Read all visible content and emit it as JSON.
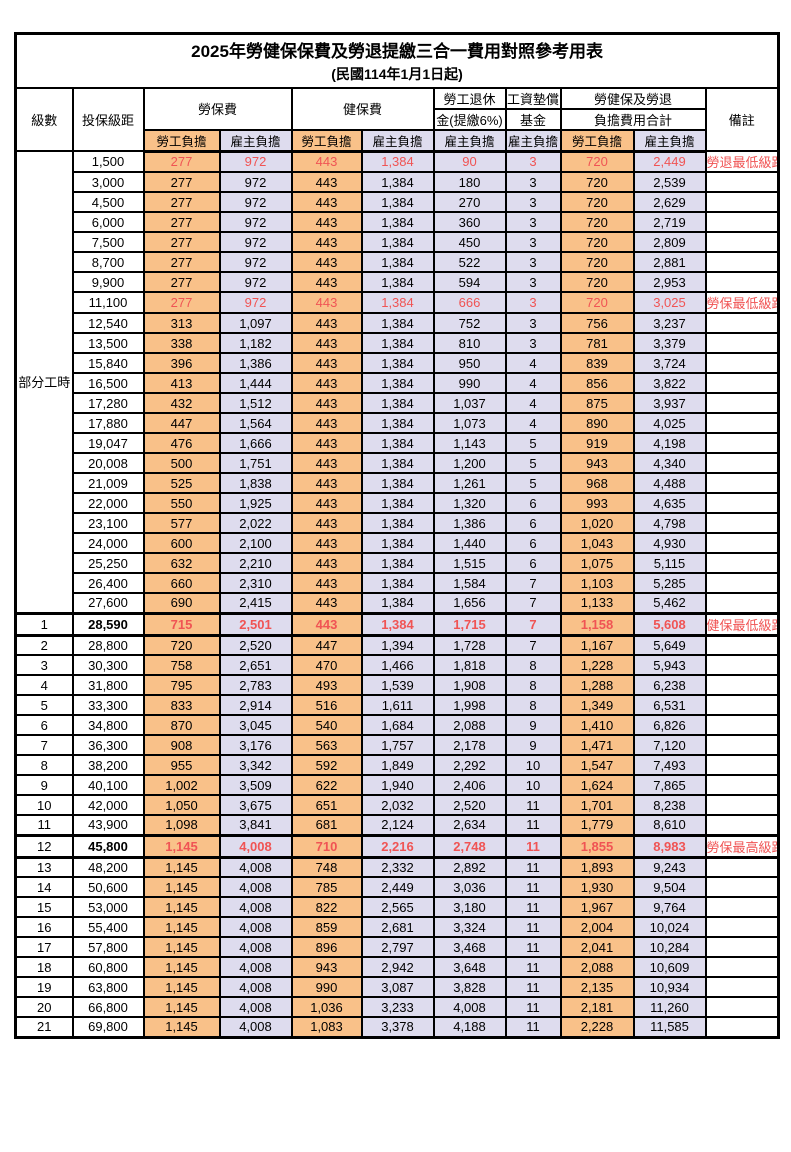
{
  "title": "2025年勞健保保費及勞退提繳三合一費用對照參考用表",
  "subtitle": "(民國114年1月1日起)",
  "colors": {
    "employee_bg": "#F9C189",
    "employer_bg": "#DEDCEE",
    "highlight_red": "#F05454"
  },
  "header": {
    "level": "級數",
    "bracket": "投保級距",
    "labor_insurance": "勞保費",
    "health_insurance": "健保費",
    "pension_line1": "勞工退休",
    "pension_line2": "金(提繳6%)",
    "wage_fund_line1": "工資墊償",
    "wage_fund_line2": "基金",
    "total_line1": "勞健保及勞退",
    "total_line2": "負擔費用合計",
    "remark": "備註",
    "employee_label": "勞工負擔",
    "employer_label": "雇主負擔"
  },
  "part_time_label": "部分工時",
  "rows": [
    {
      "level": "",
      "bracket": "1,500",
      "values": [
        "277",
        "972",
        "443",
        "1,384",
        "90",
        "3",
        "720",
        "2,449"
      ],
      "remark": "勞退最低級距",
      "red": true
    },
    {
      "level": "",
      "bracket": "3,000",
      "values": [
        "277",
        "972",
        "443",
        "1,384",
        "180",
        "3",
        "720",
        "2,539"
      ],
      "remark": ""
    },
    {
      "level": "",
      "bracket": "4,500",
      "values": [
        "277",
        "972",
        "443",
        "1,384",
        "270",
        "3",
        "720",
        "2,629"
      ],
      "remark": ""
    },
    {
      "level": "",
      "bracket": "6,000",
      "values": [
        "277",
        "972",
        "443",
        "1,384",
        "360",
        "3",
        "720",
        "2,719"
      ],
      "remark": ""
    },
    {
      "level": "",
      "bracket": "7,500",
      "values": [
        "277",
        "972",
        "443",
        "1,384",
        "450",
        "3",
        "720",
        "2,809"
      ],
      "remark": ""
    },
    {
      "level": "",
      "bracket": "8,700",
      "values": [
        "277",
        "972",
        "443",
        "1,384",
        "522",
        "3",
        "720",
        "2,881"
      ],
      "remark": ""
    },
    {
      "level": "",
      "bracket": "9,900",
      "values": [
        "277",
        "972",
        "443",
        "1,384",
        "594",
        "3",
        "720",
        "2,953"
      ],
      "remark": ""
    },
    {
      "level": "",
      "bracket": "11,100",
      "values": [
        "277",
        "972",
        "443",
        "1,384",
        "666",
        "3",
        "720",
        "3,025"
      ],
      "remark": "勞保最低級距",
      "red": true
    },
    {
      "level": "",
      "bracket": "12,540",
      "values": [
        "313",
        "1,097",
        "443",
        "1,384",
        "752",
        "3",
        "756",
        "3,237"
      ],
      "remark": ""
    },
    {
      "level": "",
      "bracket": "13,500",
      "values": [
        "338",
        "1,182",
        "443",
        "1,384",
        "810",
        "3",
        "781",
        "3,379"
      ],
      "remark": ""
    },
    {
      "level": "",
      "bracket": "15,840",
      "values": [
        "396",
        "1,386",
        "443",
        "1,384",
        "950",
        "4",
        "839",
        "3,724"
      ],
      "remark": ""
    },
    {
      "level": "",
      "bracket": "16,500",
      "values": [
        "413",
        "1,444",
        "443",
        "1,384",
        "990",
        "4",
        "856",
        "3,822"
      ],
      "remark": ""
    },
    {
      "level": "",
      "bracket": "17,280",
      "values": [
        "432",
        "1,512",
        "443",
        "1,384",
        "1,037",
        "4",
        "875",
        "3,937"
      ],
      "remark": ""
    },
    {
      "level": "",
      "bracket": "17,880",
      "values": [
        "447",
        "1,564",
        "443",
        "1,384",
        "1,073",
        "4",
        "890",
        "4,025"
      ],
      "remark": ""
    },
    {
      "level": "",
      "bracket": "19,047",
      "values": [
        "476",
        "1,666",
        "443",
        "1,384",
        "1,143",
        "5",
        "919",
        "4,198"
      ],
      "remark": ""
    },
    {
      "level": "",
      "bracket": "20,008",
      "values": [
        "500",
        "1,751",
        "443",
        "1,384",
        "1,200",
        "5",
        "943",
        "4,340"
      ],
      "remark": ""
    },
    {
      "level": "",
      "bracket": "21,009",
      "values": [
        "525",
        "1,838",
        "443",
        "1,384",
        "1,261",
        "5",
        "968",
        "4,488"
      ],
      "remark": ""
    },
    {
      "level": "",
      "bracket": "22,000",
      "values": [
        "550",
        "1,925",
        "443",
        "1,384",
        "1,320",
        "6",
        "993",
        "4,635"
      ],
      "remark": ""
    },
    {
      "level": "",
      "bracket": "23,100",
      "values": [
        "577",
        "2,022",
        "443",
        "1,384",
        "1,386",
        "6",
        "1,020",
        "4,798"
      ],
      "remark": ""
    },
    {
      "level": "",
      "bracket": "24,000",
      "values": [
        "600",
        "2,100",
        "443",
        "1,384",
        "1,440",
        "6",
        "1,043",
        "4,930"
      ],
      "remark": ""
    },
    {
      "level": "",
      "bracket": "25,250",
      "values": [
        "632",
        "2,210",
        "443",
        "1,384",
        "1,515",
        "6",
        "1,075",
        "5,115"
      ],
      "remark": ""
    },
    {
      "level": "",
      "bracket": "26,400",
      "values": [
        "660",
        "2,310",
        "443",
        "1,384",
        "1,584",
        "7",
        "1,103",
        "5,285"
      ],
      "remark": ""
    },
    {
      "level": "",
      "bracket": "27,600",
      "values": [
        "690",
        "2,415",
        "443",
        "1,384",
        "1,656",
        "7",
        "1,133",
        "5,462"
      ],
      "remark": ""
    },
    {
      "level": "1",
      "bracket": "28,590",
      "values": [
        "715",
        "2,501",
        "443",
        "1,384",
        "1,715",
        "7",
        "1,158",
        "5,608"
      ],
      "remark": "健保最低級距",
      "red": true,
      "strong": true
    },
    {
      "level": "2",
      "bracket": "28,800",
      "values": [
        "720",
        "2,520",
        "447",
        "1,394",
        "1,728",
        "7",
        "1,167",
        "5,649"
      ],
      "remark": ""
    },
    {
      "level": "3",
      "bracket": "30,300",
      "values": [
        "758",
        "2,651",
        "470",
        "1,466",
        "1,818",
        "8",
        "1,228",
        "5,943"
      ],
      "remark": ""
    },
    {
      "level": "4",
      "bracket": "31,800",
      "values": [
        "795",
        "2,783",
        "493",
        "1,539",
        "1,908",
        "8",
        "1,288",
        "6,238"
      ],
      "remark": ""
    },
    {
      "level": "5",
      "bracket": "33,300",
      "values": [
        "833",
        "2,914",
        "516",
        "1,611",
        "1,998",
        "8",
        "1,349",
        "6,531"
      ],
      "remark": ""
    },
    {
      "level": "6",
      "bracket": "34,800",
      "values": [
        "870",
        "3,045",
        "540",
        "1,684",
        "2,088",
        "9",
        "1,410",
        "6,826"
      ],
      "remark": ""
    },
    {
      "level": "7",
      "bracket": "36,300",
      "values": [
        "908",
        "3,176",
        "563",
        "1,757",
        "2,178",
        "9",
        "1,471",
        "7,120"
      ],
      "remark": ""
    },
    {
      "level": "8",
      "bracket": "38,200",
      "values": [
        "955",
        "3,342",
        "592",
        "1,849",
        "2,292",
        "10",
        "1,547",
        "7,493"
      ],
      "remark": ""
    },
    {
      "level": "9",
      "bracket": "40,100",
      "values": [
        "1,002",
        "3,509",
        "622",
        "1,940",
        "2,406",
        "10",
        "1,624",
        "7,865"
      ],
      "remark": ""
    },
    {
      "level": "10",
      "bracket": "42,000",
      "values": [
        "1,050",
        "3,675",
        "651",
        "2,032",
        "2,520",
        "11",
        "1,701",
        "8,238"
      ],
      "remark": ""
    },
    {
      "level": "11",
      "bracket": "43,900",
      "values": [
        "1,098",
        "3,841",
        "681",
        "2,124",
        "2,634",
        "11",
        "1,779",
        "8,610"
      ],
      "remark": ""
    },
    {
      "level": "12",
      "bracket": "45,800",
      "values": [
        "1,145",
        "4,008",
        "710",
        "2,216",
        "2,748",
        "11",
        "1,855",
        "8,983"
      ],
      "remark": "勞保最高級距",
      "red": true,
      "strong": true
    },
    {
      "level": "13",
      "bracket": "48,200",
      "values": [
        "1,145",
        "4,008",
        "748",
        "2,332",
        "2,892",
        "11",
        "1,893",
        "9,243"
      ],
      "remark": ""
    },
    {
      "level": "14",
      "bracket": "50,600",
      "values": [
        "1,145",
        "4,008",
        "785",
        "2,449",
        "3,036",
        "11",
        "1,930",
        "9,504"
      ],
      "remark": ""
    },
    {
      "level": "15",
      "bracket": "53,000",
      "values": [
        "1,145",
        "4,008",
        "822",
        "2,565",
        "3,180",
        "11",
        "1,967",
        "9,764"
      ],
      "remark": ""
    },
    {
      "level": "16",
      "bracket": "55,400",
      "values": [
        "1,145",
        "4,008",
        "859",
        "2,681",
        "3,324",
        "11",
        "2,004",
        "10,024"
      ],
      "remark": ""
    },
    {
      "level": "17",
      "bracket": "57,800",
      "values": [
        "1,145",
        "4,008",
        "896",
        "2,797",
        "3,468",
        "11",
        "2,041",
        "10,284"
      ],
      "remark": ""
    },
    {
      "level": "18",
      "bracket": "60,800",
      "values": [
        "1,145",
        "4,008",
        "943",
        "2,942",
        "3,648",
        "11",
        "2,088",
        "10,609"
      ],
      "remark": ""
    },
    {
      "level": "19",
      "bracket": "63,800",
      "values": [
        "1,145",
        "4,008",
        "990",
        "3,087",
        "3,828",
        "11",
        "2,135",
        "10,934"
      ],
      "remark": ""
    },
    {
      "level": "20",
      "bracket": "66,800",
      "values": [
        "1,145",
        "4,008",
        "1,036",
        "3,233",
        "4,008",
        "11",
        "2,181",
        "11,260"
      ],
      "remark": ""
    },
    {
      "level": "21",
      "bracket": "69,800",
      "values": [
        "1,145",
        "4,008",
        "1,083",
        "3,378",
        "4,188",
        "11",
        "2,228",
        "11,585"
      ],
      "remark": ""
    }
  ]
}
